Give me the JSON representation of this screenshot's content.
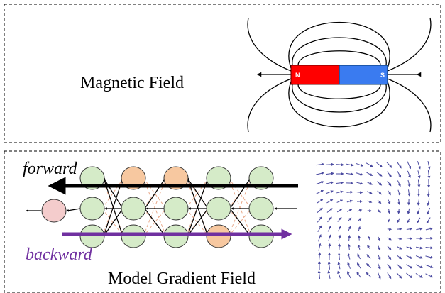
{
  "top_panel": {
    "label": "Magnetic Field",
    "magnet": {
      "north": "N",
      "south": "S"
    }
  },
  "bottom_panel": {
    "label": "Model Gradient Field",
    "forward": "forward",
    "backward": "backward"
  }
}
